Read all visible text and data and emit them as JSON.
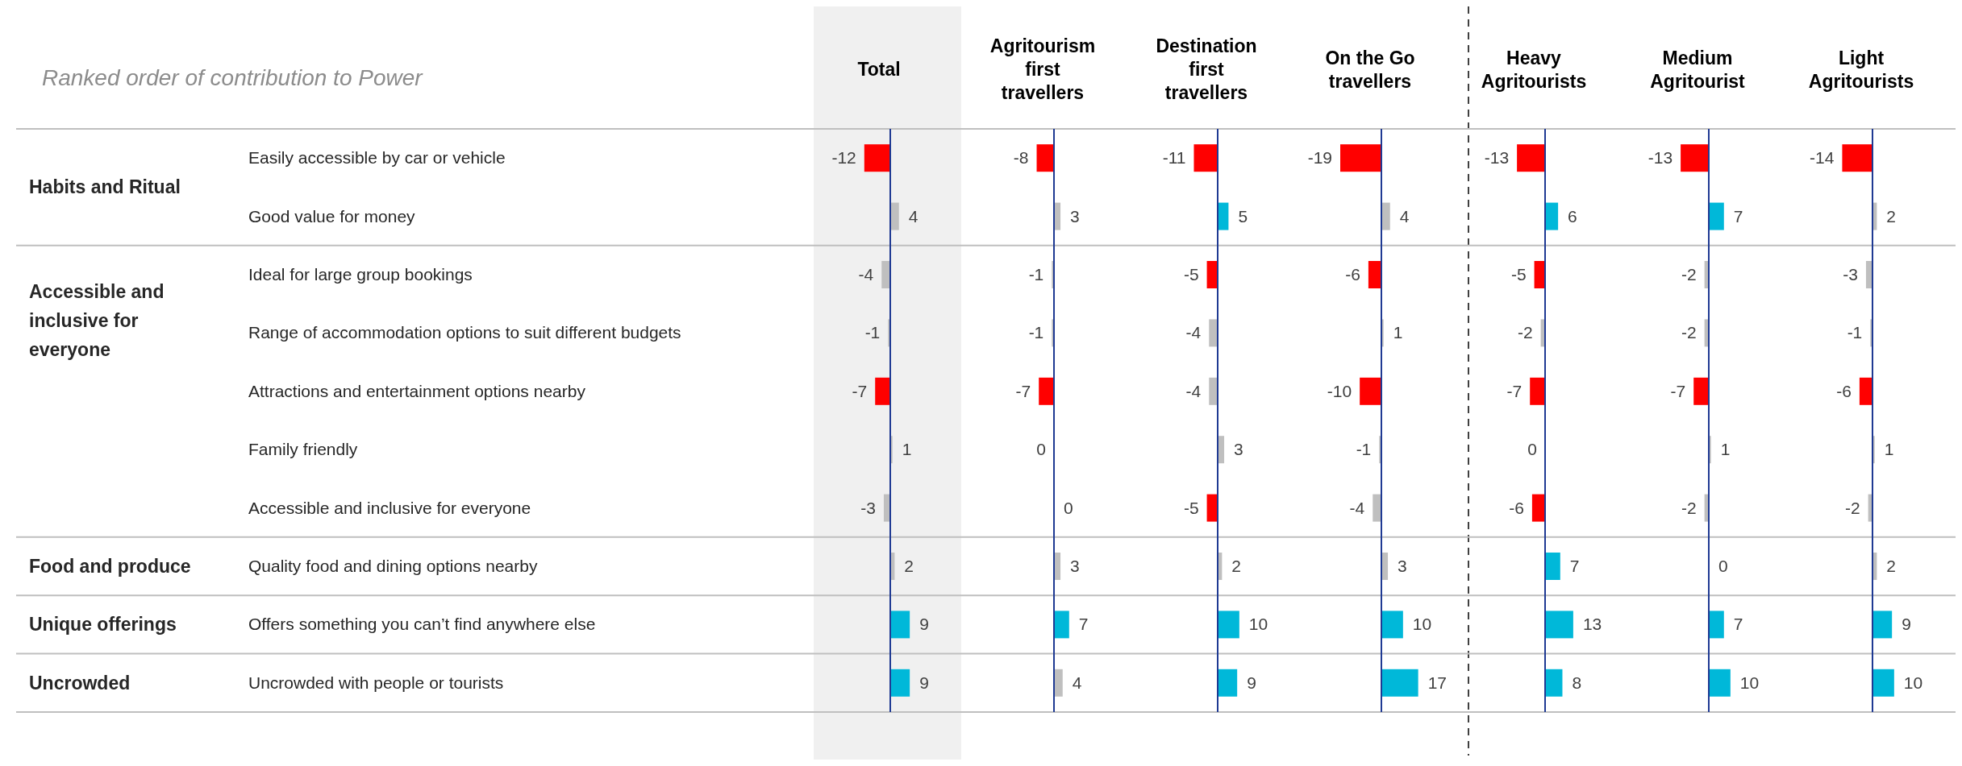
{
  "chart_data": [
    {
      "type": "bar",
      "orientation": "horizontal",
      "title": "Total",
      "tick_labels": "y",
      "data_labels": true,
      "annotations": [
        "Ranked order of contribution to Power",
        "Habits and Ritual",
        "Accessible and inclusive for everyone",
        "Food and produce",
        "Unique offerings",
        "Uncrowded"
      ],
      "ref_lines": [
        {
          "axis": "x",
          "value": 0,
          "color": "#1f3a93"
        }
      ],
      "categories": [
        "Easily accessible by car or vehicle",
        "Good value for money",
        "Ideal for large group bookings",
        "Range of accommodation options to suit different budgets",
        "Attractions and entertainment options nearby",
        "Family friendly",
        "Accessible and inclusive for everyone",
        "Quality food and dining options nearby",
        "Offers something you can’t find anywhere else",
        "Uncrowded with people or tourists"
      ],
      "values": [
        -12,
        4,
        -4,
        -1,
        -7,
        1,
        -3,
        2,
        9,
        9
      ],
      "colors": [
        "#ff0000",
        "#bfbfbf",
        "#bfbfbf",
        "#bfbfbf",
        "#ff0000",
        "#bfbfbf",
        "#bfbfbf",
        "#bfbfbf",
        "#00b8d9",
        "#00b8d9"
      ]
    },
    {
      "type": "bar",
      "orientation": "horizontal",
      "title": "Agritourism first travellers",
      "tick_labels": false,
      "data_labels": true,
      "ref_lines": [
        {
          "axis": "x",
          "value": 0,
          "color": "#1f3a93"
        }
      ],
      "categories": [
        null,
        null,
        null,
        null,
        null,
        null,
        null,
        null,
        null,
        null
      ],
      "values": [
        -8,
        3,
        -1,
        -1,
        -7,
        0,
        0,
        3,
        7,
        4
      ],
      "colors": [
        "#ff0000",
        "#bfbfbf",
        "#bfbfbf",
        "#bfbfbf",
        "#ff0000",
        "#bfbfbf",
        "#bfbfbf",
        "#bfbfbf",
        "#00b8d9",
        "#bfbfbf"
      ]
    },
    {
      "type": "bar",
      "orientation": "horizontal",
      "title": "Destination first travellers",
      "tick_labels": false,
      "data_labels": true,
      "ref_lines": [
        {
          "axis": "x",
          "value": 0,
          "color": "#1f3a93"
        }
      ],
      "categories": [
        null,
        null,
        null,
        null,
        null,
        null,
        null,
        null,
        null,
        null
      ],
      "values": [
        -11,
        5,
        -5,
        -4,
        -4,
        3,
        -5,
        2,
        10,
        9
      ],
      "colors": [
        "#ff0000",
        "#00b8d9",
        "#ff0000",
        "#bfbfbf",
        "#bfbfbf",
        "#bfbfbf",
        "#ff0000",
        "#bfbfbf",
        "#00b8d9",
        "#00b8d9"
      ]
    },
    {
      "type": "bar",
      "orientation": "horizontal",
      "title": "On the Go travellers",
      "tick_labels": false,
      "data_labels": true,
      "ref_lines": [
        {
          "axis": "x",
          "value": 0,
          "color": "#1f3a93"
        }
      ],
      "categories": [
        null,
        null,
        null,
        null,
        null,
        null,
        null,
        null,
        null,
        null
      ],
      "values": [
        -19,
        4,
        -6,
        1,
        -10,
        -1,
        -4,
        3,
        10,
        17
      ],
      "colors": [
        "#ff0000",
        "#bfbfbf",
        "#ff0000",
        "#bfbfbf",
        "#ff0000",
        "#bfbfbf",
        "#bfbfbf",
        "#bfbfbf",
        "#00b8d9",
        "#00b8d9"
      ]
    },
    {
      "type": "bar",
      "orientation": "horizontal",
      "title": "Heavy Agritourists",
      "tick_labels": false,
      "data_labels": true,
      "ref_lines": [
        {
          "axis": "x",
          "value": 0,
          "color": "#1f3a93"
        }
      ],
      "categories": [
        null,
        null,
        null,
        null,
        null,
        null,
        null,
        null,
        null,
        null
      ],
      "values": [
        -13,
        6,
        -5,
        -2,
        -7,
        0,
        -6,
        7,
        13,
        8
      ],
      "colors": [
        "#ff0000",
        "#00b8d9",
        "#ff0000",
        "#bfbfbf",
        "#ff0000",
        "#bfbfbf",
        "#ff0000",
        "#00b8d9",
        "#00b8d9",
        "#00b8d9"
      ]
    },
    {
      "type": "bar",
      "orientation": "horizontal",
      "title": "Medium Agritourist",
      "tick_labels": false,
      "data_labels": true,
      "ref_lines": [
        {
          "axis": "x",
          "value": 0,
          "color": "#1f3a93"
        }
      ],
      "categories": [
        null,
        null,
        null,
        null,
        null,
        null,
        null,
        null,
        null,
        null
      ],
      "values": [
        -13,
        7,
        -2,
        -2,
        -7,
        1,
        -2,
        0,
        7,
        10
      ],
      "colors": [
        "#ff0000",
        "#00b8d9",
        "#bfbfbf",
        "#bfbfbf",
        "#ff0000",
        "#bfbfbf",
        "#bfbfbf",
        "#bfbfbf",
        "#00b8d9",
        "#00b8d9"
      ]
    },
    {
      "type": "bar",
      "orientation": "horizontal",
      "title": "Light Agritourists",
      "tick_labels": false,
      "data_labels": true,
      "ref_lines": [
        {
          "axis": "x",
          "value": 0,
          "color": "#1f3a93"
        }
      ],
      "categories": [
        null,
        null,
        null,
        null,
        null,
        null,
        null,
        null,
        null,
        null
      ],
      "values": [
        -14,
        2,
        -3,
        -1,
        -6,
        1,
        -2,
        2,
        9,
        10
      ],
      "colors": [
        "#ff0000",
        "#bfbfbf",
        "#bfbfbf",
        "#bfbfbf",
        "#ff0000",
        "#bfbfbf",
        "#bfbfbf",
        "#bfbfbf",
        "#00b8d9",
        "#00b8d9"
      ]
    }
  ]
}
